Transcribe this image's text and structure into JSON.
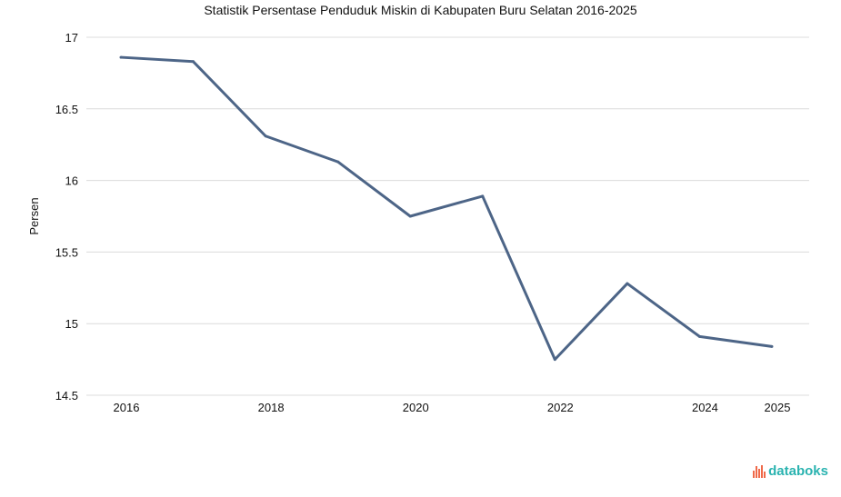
{
  "chart_data": {
    "type": "line",
    "title": "Statistik Persentase Penduduk Miskin di Kabupaten Buru Selatan 2016-2025",
    "xlabel": "",
    "ylabel": "Persen",
    "x": [
      2016,
      2017,
      2018,
      2019,
      2020,
      2021,
      2022,
      2023,
      2024,
      2025
    ],
    "x_tick_labels": [
      "2016",
      "2018",
      "2020",
      "2022",
      "2024",
      "2025"
    ],
    "x_tick_values": [
      2016,
      2018,
      2020,
      2022,
      2024,
      2025
    ],
    "y_tick_labels": [
      "17",
      "16.5",
      "16",
      "15.5",
      "15",
      "14.5"
    ],
    "y_tick_values": [
      17,
      16.5,
      16,
      15.5,
      15,
      14.5
    ],
    "ylim": [
      14.5,
      17
    ],
    "grid": true,
    "series": [
      {
        "name": "Persen",
        "color": "#4d6587",
        "values": [
          16.86,
          16.83,
          16.31,
          16.13,
          15.75,
          15.89,
          14.75,
          15.28,
          14.91,
          14.84
        ]
      }
    ]
  },
  "logo": {
    "text": "databoks"
  }
}
